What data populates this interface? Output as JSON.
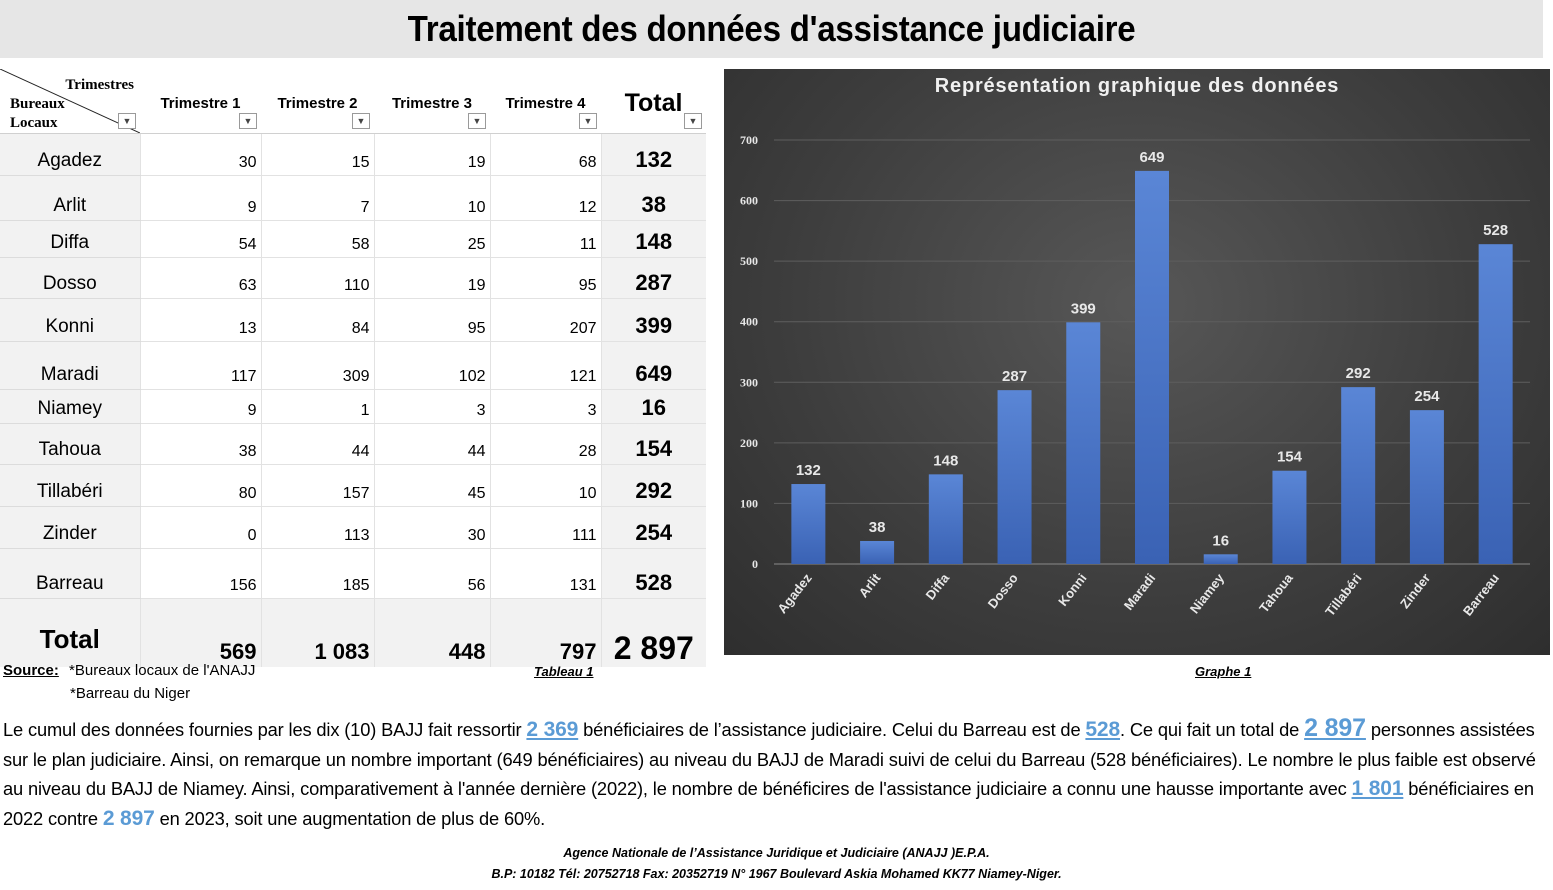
{
  "title": "Traitement des données d'assistance judiciaire",
  "table": {
    "corner_top": "Trimestres",
    "corner_bottom_1": "Bureaux",
    "corner_bottom_2": "Locaux",
    "headers": [
      "Trimestre 1",
      "Trimestre 2",
      "Trimestre 3",
      "Trimestre 4",
      "Total"
    ],
    "rows": [
      {
        "bureau": "Agadez",
        "t1": "30",
        "t2": "15",
        "t3": "19",
        "t4": "68",
        "total": "132"
      },
      {
        "bureau": "Arlit",
        "t1": "9",
        "t2": "7",
        "t3": "10",
        "t4": "12",
        "total": "38"
      },
      {
        "bureau": "Diffa",
        "t1": "54",
        "t2": "58",
        "t3": "25",
        "t4": "11",
        "total": "148"
      },
      {
        "bureau": "Dosso",
        "t1": "63",
        "t2": "110",
        "t3": "19",
        "t4": "95",
        "total": "287"
      },
      {
        "bureau": "Konni",
        "t1": "13",
        "t2": "84",
        "t3": "95",
        "t4": "207",
        "total": "399"
      },
      {
        "bureau": "Maradi",
        "t1": "117",
        "t2": "309",
        "t3": "102",
        "t4": "121",
        "total": "649"
      },
      {
        "bureau": "Niamey",
        "t1": "9",
        "t2": "1",
        "t3": "3",
        "t4": "3",
        "total": "16"
      },
      {
        "bureau": "Tahoua",
        "t1": "38",
        "t2": "44",
        "t3": "44",
        "t4": "28",
        "total": "154"
      },
      {
        "bureau": "Tillabéri",
        "t1": "80",
        "t2": "157",
        "t3": "45",
        "t4": "10",
        "total": "292"
      },
      {
        "bureau": "Zinder",
        "t1": "0",
        "t2": "113",
        "t3": "30",
        "t4": "111",
        "total": "254"
      },
      {
        "bureau": "Barreau",
        "t1": "156",
        "t2": "185",
        "t3": "56",
        "t4": "131",
        "total": "528"
      }
    ],
    "footer": {
      "label": "Total",
      "t1": "569",
      "t2": "1 083",
      "t3": "448",
      "t4": "797",
      "total": "2 897"
    }
  },
  "chart_data": {
    "type": "bar",
    "title": "Représentation graphique des données",
    "categories": [
      "Agadez",
      "Arlit",
      "Diffa",
      "Dosso",
      "Konni",
      "Maradi",
      "Niamey",
      "Tahoua",
      "Tillabéri",
      "Zinder",
      "Barreau"
    ],
    "values": [
      132,
      38,
      148,
      287,
      399,
      649,
      16,
      154,
      292,
      254,
      528
    ],
    "ylim": [
      0,
      700
    ],
    "yticks": [
      0,
      100,
      200,
      300,
      400,
      500,
      600,
      700
    ],
    "grid": true,
    "bar_color": "#4472c4",
    "data_labels": true
  },
  "captions": {
    "source_label": "Source:",
    "source_1": "*Bureaux locaux de l'ANAJJ",
    "source_2": "*Barreau du Niger",
    "table_caption": "Tableau 1",
    "chart_caption": "Graphe 1"
  },
  "paragraph": {
    "p1": "Le cumul des données fournies par les dix (10) BAJJ fait ressortir ",
    "v1": "2 369",
    "p2": " bénéficiaires de l’assistance judiciaire. Celui du Barreau est de ",
    "v2": "528",
    "p3": ". Ce qui fait un total de ",
    "v3": "2 897",
    "p4": " personnes assistées sur le plan judiciaire. Ainsi, on remarque un nombre important (649 bénéficiaires) au niveau du BAJJ de Maradi suivi de celui du Barreau (528 bénéficiaires). Le nombre le plus faible est observé au niveau du BAJJ de Niamey. Ainsi, comparativement à l'année dernière (2022), le nombre de bénéficires de l'assistance judiciaire a connu une hausse importante avec ",
    "v4": "1 801",
    "p5": " bénéficiaires en 2022 contre ",
    "v5": "2 897",
    "p6": " en 2023, soit une augmentation de plus de 60%."
  },
  "footer": {
    "line1": "Agence Nationale de l’Assistance Juridique et Judiciaire (ANAJJ )E.P.A.",
    "line2": "B.P: 10182 Tél: 20752718 Fax: 20352719 N° 1967 Boulevard Askia Mohamed KK77 Niamey-Niger."
  },
  "colors": {
    "accent": "#5b9bd5",
    "bar": "#4472c4",
    "chart_bg": "#404040"
  },
  "icons": [
    "filter-dropdown-icon"
  ]
}
